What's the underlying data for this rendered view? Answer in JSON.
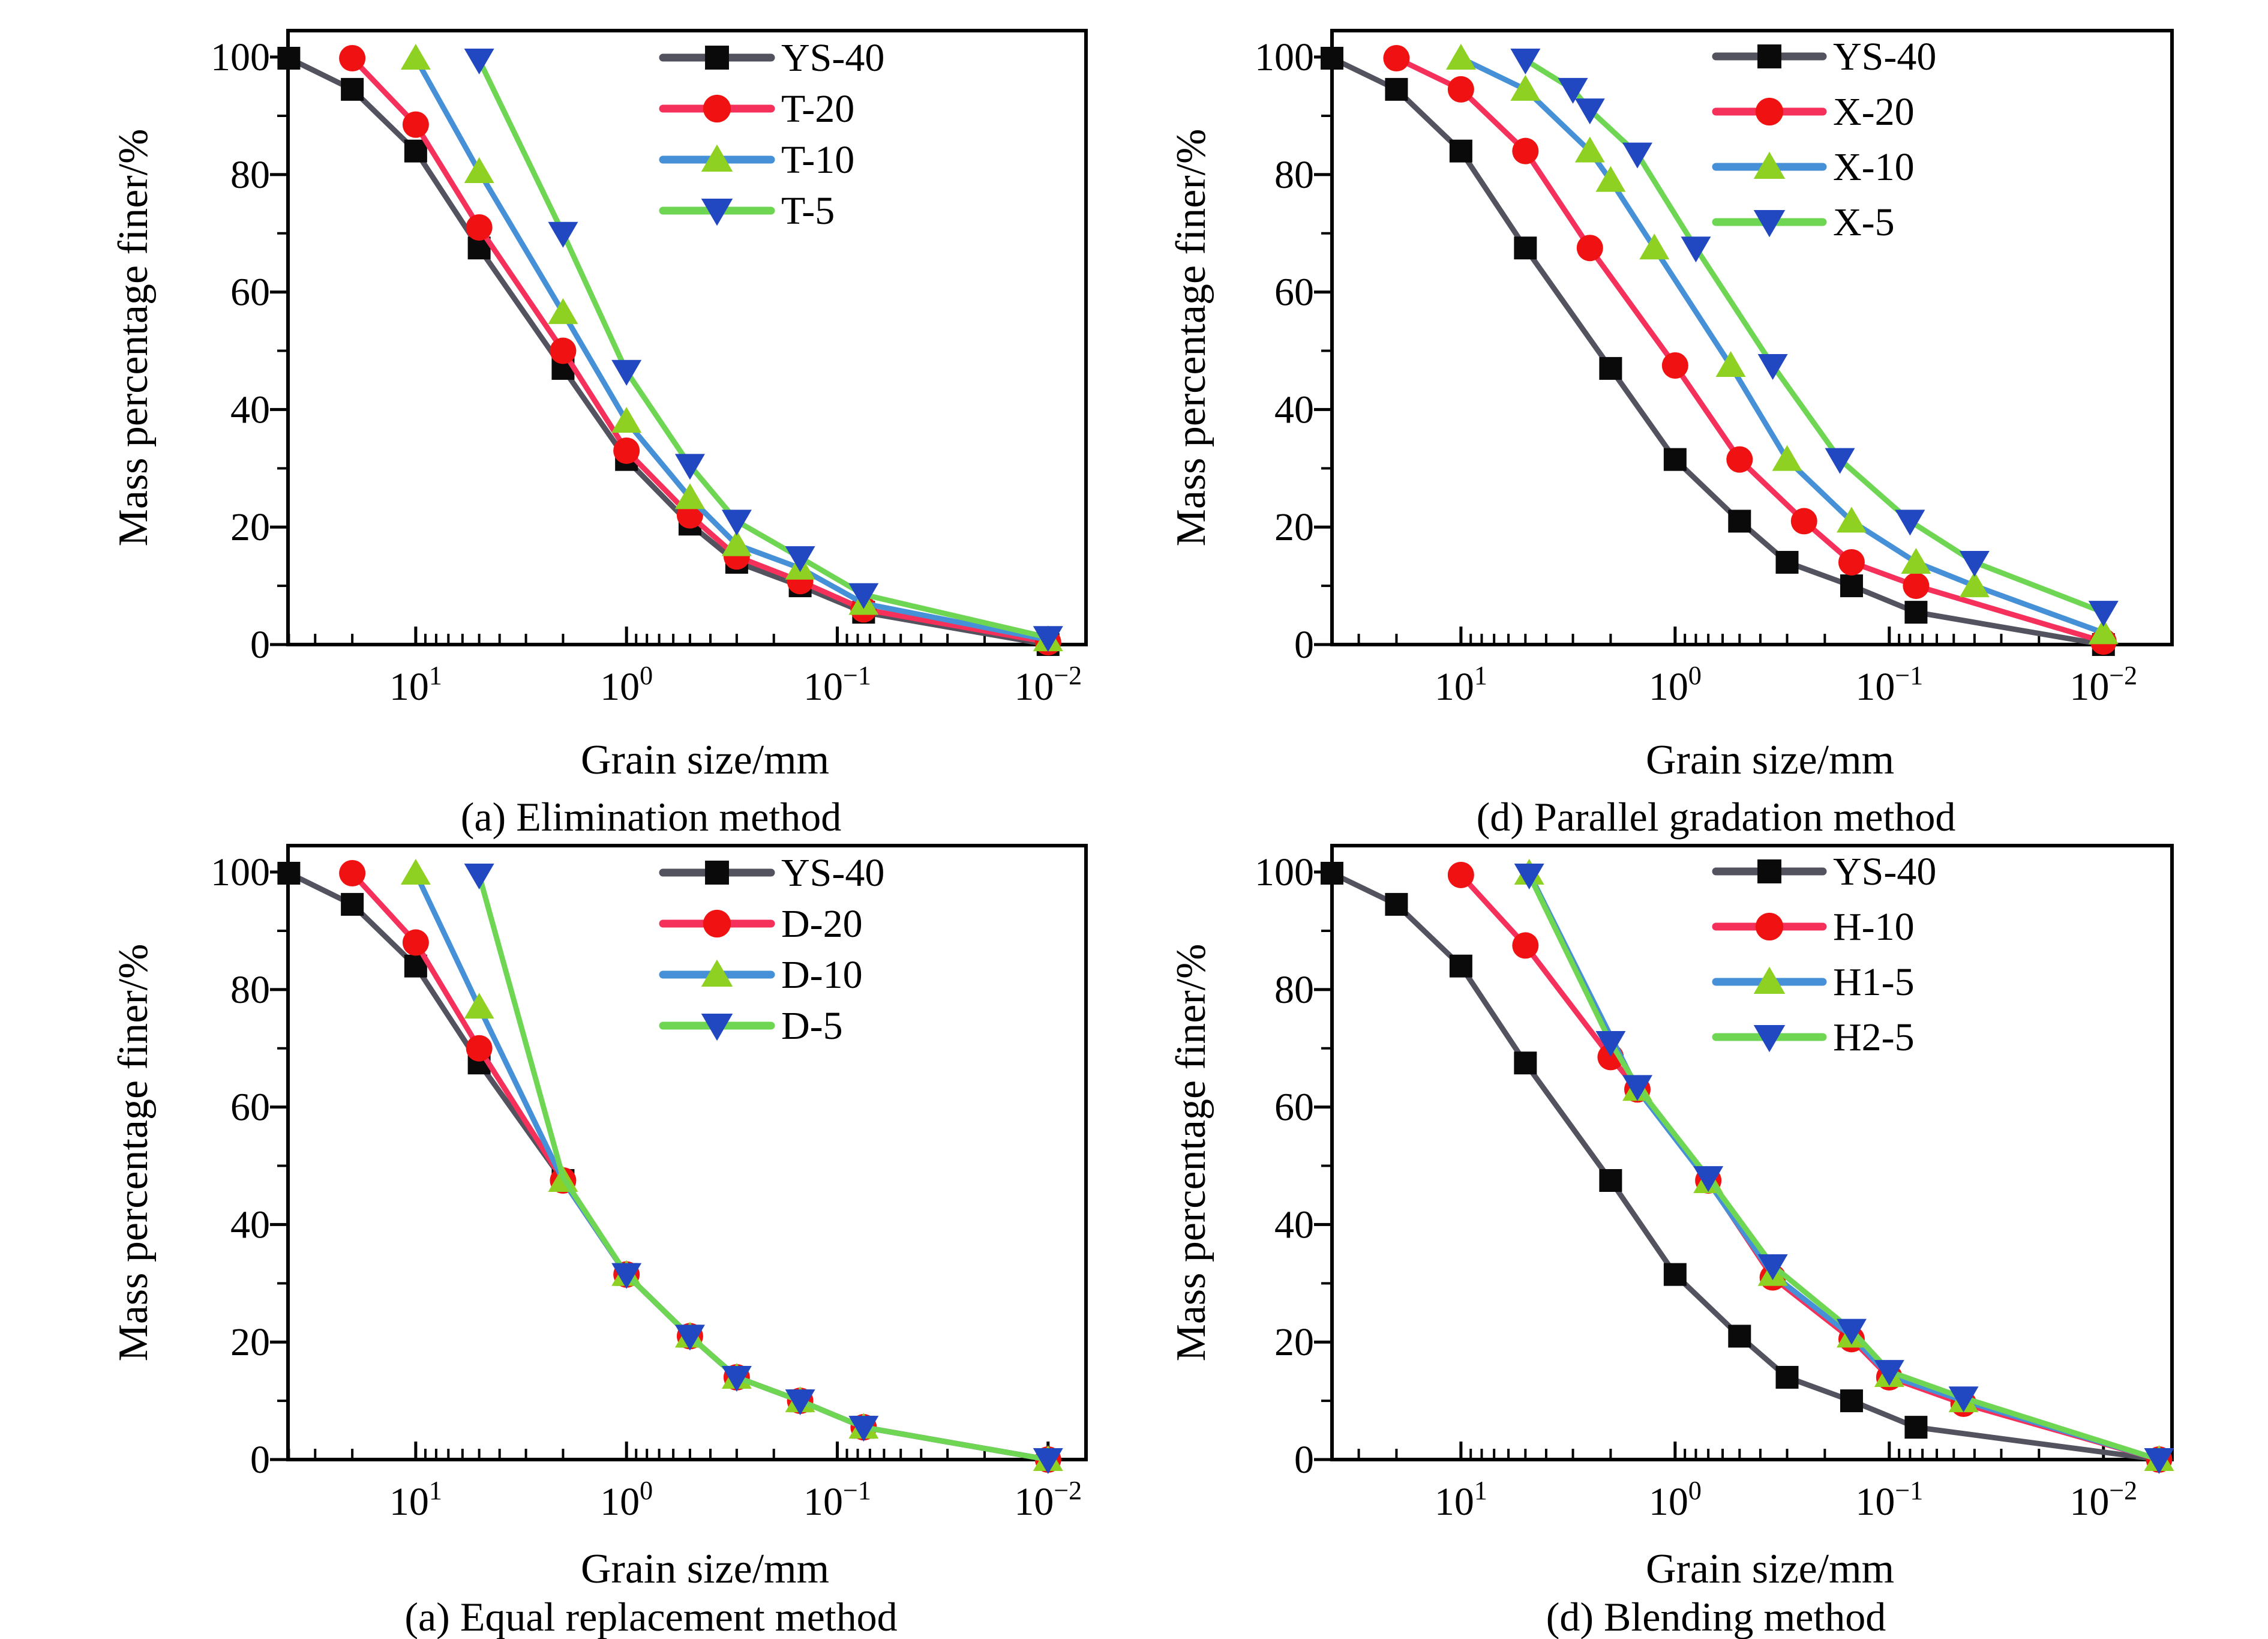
{
  "figure_title": "",
  "accent_colors": {
    "ys40_line": "#53535f",
    "ys40_marker": "#0a0a0a",
    "series2_line": "#f5305a",
    "series2_marker": "#f01212",
    "series3_line": "#4590d6",
    "series3_marker": "#8ed122",
    "series4_line": "#6ed653",
    "series4_marker": "#2148c0",
    "axis": "#000000",
    "text": "#000000",
    "background": "#ffffff"
  },
  "chart_data": [
    {
      "type": "line",
      "caption": "(a) Elimination method",
      "xlabel": "Grain size/mm",
      "ylabel": "Mass percentage finer/%",
      "x_axis": {
        "scale": "log",
        "reversed": true,
        "major_tick_exponents": [
          1,
          0,
          -1,
          -2
        ],
        "unit": "mm"
      },
      "y_axis": {
        "min": 0,
        "max": 100,
        "major_ticks": [
          0,
          20,
          40,
          60,
          80,
          100
        ]
      },
      "grid": false,
      "legend_position": "top-right-inside",
      "series": [
        {
          "name": "YS-40",
          "line_color": "#53535f",
          "marker_color": "#0a0a0a",
          "marker": "square",
          "points": [
            [
              40,
              99.8
            ],
            [
              20,
              94.5
            ],
            [
              10,
              84
            ],
            [
              5,
              67.5
            ],
            [
              2,
              47
            ],
            [
              1,
              31.5
            ],
            [
              0.5,
              20.5
            ],
            [
              0.3,
              14
            ],
            [
              0.15,
              10
            ],
            [
              0.075,
              5.5
            ],
            [
              0.01,
              0
            ]
          ]
        },
        {
          "name": "T-20",
          "line_color": "#f5305a",
          "marker_color": "#f01212",
          "marker": "circle",
          "points": [
            [
              20,
              99.8
            ],
            [
              10,
              88.5
            ],
            [
              5,
              71
            ],
            [
              2,
              50
            ],
            [
              1,
              33
            ],
            [
              0.5,
              22
            ],
            [
              0.3,
              15
            ],
            [
              0.15,
              10.8
            ],
            [
              0.075,
              6
            ],
            [
              0.01,
              0.4
            ]
          ]
        },
        {
          "name": "T-10",
          "line_color": "#4590d6",
          "marker_color": "#8ed122",
          "marker": "triangle-up",
          "points": [
            [
              10,
              99.8
            ],
            [
              5,
              80.5
            ],
            [
              2,
              56.5
            ],
            [
              1,
              38
            ],
            [
              0.5,
              25
            ],
            [
              0.3,
              17
            ],
            [
              0.15,
              13
            ],
            [
              0.075,
              7
            ],
            [
              0.01,
              0.8
            ]
          ]
        },
        {
          "name": "T-5",
          "line_color": "#6ed653",
          "marker_color": "#2148c0",
          "marker": "triangle-down",
          "points": [
            [
              5,
              99.5
            ],
            [
              2,
              70
            ],
            [
              1,
              46.5
            ],
            [
              0.5,
              30.5
            ],
            [
              0.3,
              21
            ],
            [
              0.15,
              14.8
            ],
            [
              0.075,
              8.5
            ],
            [
              0.01,
              1.2
            ]
          ]
        }
      ],
      "layout": {
        "frame_left": 440,
        "frame_right": 1770,
        "frame_top": 35,
        "frame_bottom": 1058,
        "x_left_exp": 1.606,
        "x_right_exp": -2.18,
        "y_top_pct": 104.5,
        "ytick_label_x": 410,
        "ytitle_x": 205,
        "legend": {
          "x1": 1065,
          "x2": 1245,
          "label_x": 1262,
          "rows_y": [
            80,
            165,
            250,
            335
          ]
        },
        "xtick_label_dy": 92,
        "xlabel_dy": 215,
        "caption_dy": 310
      }
    },
    {
      "type": "line",
      "caption": "(d) Parallel gradation method",
      "xlabel": "Grain size/mm",
      "ylabel": "Mass percentage finer/%",
      "x_axis": {
        "scale": "log",
        "reversed": true,
        "major_tick_exponents": [
          1,
          0,
          -1,
          -2
        ],
        "unit": "mm"
      },
      "y_axis": {
        "min": 0,
        "max": 100,
        "major_ticks": [
          0,
          20,
          40,
          60,
          80,
          100
        ]
      },
      "grid": false,
      "legend_position": "top-right-inside",
      "series": [
        {
          "name": "YS-40",
          "line_color": "#53535f",
          "marker_color": "#0a0a0a",
          "marker": "square",
          "points": [
            [
              40,
              99.8
            ],
            [
              20,
              94.5
            ],
            [
              10,
              84
            ],
            [
              5,
              67.5
            ],
            [
              2,
              47
            ],
            [
              1,
              31.5
            ],
            [
              0.5,
              21
            ],
            [
              0.3,
              14
            ],
            [
              0.15,
              10
            ],
            [
              0.075,
              5.5
            ],
            [
              0.01,
              0
            ]
          ]
        },
        {
          "name": "X-20",
          "line_color": "#f5305a",
          "marker_color": "#f01212",
          "marker": "circle",
          "points": [
            [
              20,
              99.8
            ],
            [
              10,
              94.5
            ],
            [
              5,
              84
            ],
            [
              2.5,
              67.5
            ],
            [
              1,
              47.5
            ],
            [
              0.5,
              31.5
            ],
            [
              0.25,
              21
            ],
            [
              0.15,
              14
            ],
            [
              0.075,
              10
            ],
            [
              0.01,
              0.5
            ]
          ]
        },
        {
          "name": "X-10",
          "line_color": "#4590d6",
          "marker_color": "#8ed122",
          "marker": "triangle-up",
          "points": [
            [
              10,
              99.8
            ],
            [
              5,
              94.5
            ],
            [
              2.5,
              84
            ],
            [
              2,
              79
            ],
            [
              1.25,
              67.5
            ],
            [
              0.55,
              47.5
            ],
            [
              0.3,
              31.5
            ],
            [
              0.15,
              21
            ],
            [
              0.075,
              14
            ],
            [
              0.04,
              10
            ],
            [
              0.01,
              2
            ]
          ]
        },
        {
          "name": "X-5",
          "line_color": "#6ed653",
          "marker_color": "#2148c0",
          "marker": "triangle-down",
          "points": [
            [
              5,
              99.5
            ],
            [
              3,
              94.5
            ],
            [
              2.5,
              91
            ],
            [
              1.5,
              83.5
            ],
            [
              0.8,
              67.5
            ],
            [
              0.35,
              47.5
            ],
            [
              0.17,
              31.5
            ],
            [
              0.08,
              21
            ],
            [
              0.04,
              14
            ],
            [
              0.01,
              5.5
            ]
          ]
        }
      ],
      "layout": {
        "frame_left": 290,
        "frame_right": 1690,
        "frame_top": 35,
        "frame_bottom": 1058,
        "x_left_exp": 1.602,
        "x_right_exp": -2.32,
        "y_top_pct": 104.5,
        "ytick_label_x": 260,
        "ytitle_x": 78,
        "legend": {
          "x1": 930,
          "x2": 1108,
          "label_x": 1125,
          "rows_y": [
            78,
            170,
            262,
            354
          ]
        },
        "xtick_label_dy": 92,
        "xlabel_dy": 215,
        "caption_dy": 310
      }
    },
    {
      "type": "line",
      "caption": "(a) Equal replacement method",
      "xlabel": "Grain size/mm",
      "ylabel": "Mass percentage finer/%",
      "x_axis": {
        "scale": "log",
        "reversed": true,
        "major_tick_exponents": [
          1,
          0,
          -1,
          -2
        ],
        "unit": "mm"
      },
      "y_axis": {
        "min": 0,
        "max": 100,
        "major_ticks": [
          0,
          20,
          40,
          60,
          80,
          100
        ]
      },
      "grid": false,
      "legend_position": "top-right-inside",
      "series": [
        {
          "name": "YS-40",
          "line_color": "#53535f",
          "marker_color": "#0a0a0a",
          "marker": "square",
          "points": [
            [
              40,
              99.8
            ],
            [
              20,
              94.5
            ],
            [
              10,
              84
            ],
            [
              5,
              67.5
            ],
            [
              2,
              47.5
            ],
            [
              1,
              31.5
            ],
            [
              0.5,
              21
            ],
            [
              0.3,
              14
            ],
            [
              0.15,
              10
            ],
            [
              0.075,
              5.5
            ],
            [
              0.01,
              0
            ]
          ]
        },
        {
          "name": "D-20",
          "line_color": "#f5305a",
          "marker_color": "#f01212",
          "marker": "circle",
          "points": [
            [
              20,
              99.8
            ],
            [
              10,
              88
            ],
            [
              5,
              70
            ],
            [
              2,
              47.5
            ],
            [
              1,
              31.5
            ],
            [
              0.5,
              21
            ],
            [
              0.3,
              14
            ],
            [
              0.15,
              10
            ],
            [
              0.075,
              5.5
            ],
            [
              0.01,
              0
            ]
          ]
        },
        {
          "name": "D-10",
          "line_color": "#4590d6",
          "marker_color": "#8ed122",
          "marker": "triangle-up",
          "points": [
            [
              10,
              99.8
            ],
            [
              5,
              77
            ],
            [
              2,
              47.5
            ],
            [
              1,
              31.5
            ],
            [
              0.5,
              21
            ],
            [
              0.3,
              14
            ],
            [
              0.15,
              10
            ],
            [
              0.075,
              5.5
            ],
            [
              0.01,
              0
            ]
          ]
        },
        {
          "name": "D-5",
          "line_color": "#6ed653",
          "marker_color": "#2148c0",
          "marker": "triangle-down",
          "points": [
            [
              5,
              99.5
            ],
            [
              2,
              48,
              0
            ],
            [
              1,
              31.5
            ],
            [
              0.5,
              21
            ],
            [
              0.3,
              14
            ],
            [
              0.15,
              10
            ],
            [
              0.075,
              5.5
            ],
            [
              0.01,
              0
            ]
          ]
        }
      ],
      "layout": {
        "frame_left": 440,
        "frame_right": 1770,
        "frame_top": 35,
        "frame_bottom": 1058,
        "x_left_exp": 1.606,
        "x_right_exp": -2.18,
        "y_top_pct": 104.5,
        "ytick_label_x": 410,
        "ytitle_x": 205,
        "legend": {
          "x1": 1065,
          "x2": 1245,
          "label_x": 1262,
          "rows_y": [
            80,
            165,
            250,
            335
          ]
        },
        "xtick_label_dy": 92,
        "xlabel_dy": 205,
        "caption_dy": 285
      }
    },
    {
      "type": "line",
      "caption": "(d) Blending method",
      "xlabel": "Grain size/mm",
      "ylabel": "Mass percentage finer/%",
      "x_axis": {
        "scale": "log",
        "reversed": true,
        "major_tick_exponents": [
          1,
          0,
          -1,
          -2
        ],
        "unit": "mm"
      },
      "y_axis": {
        "min": 0,
        "max": 100,
        "major_ticks": [
          0,
          20,
          40,
          60,
          80,
          100
        ]
      },
      "grid": false,
      "legend_position": "top-right-inside",
      "series": [
        {
          "name": "YS-40",
          "line_color": "#53535f",
          "marker_color": "#0a0a0a",
          "marker": "square",
          "points": [
            [
              40,
              99.8
            ],
            [
              20,
              94.5
            ],
            [
              10,
              84
            ],
            [
              5,
              67.5
            ],
            [
              2,
              47.5
            ],
            [
              1,
              31.5
            ],
            [
              0.5,
              21
            ],
            [
              0.3,
              14
            ],
            [
              0.15,
              10
            ],
            [
              0.075,
              5.5
            ],
            [
              0.0055,
              0
            ]
          ]
        },
        {
          "name": "H-10",
          "line_color": "#f5305a",
          "marker_color": "#f01212",
          "marker": "circle",
          "points": [
            [
              10,
              99.5
            ],
            [
              5,
              87.5
            ],
            [
              2,
              68.5
            ],
            [
              1.5,
              63
            ],
            [
              0.7,
              47.5
            ],
            [
              0.35,
              31
            ],
            [
              0.15,
              20.5
            ],
            [
              0.1,
              14
            ],
            [
              0.045,
              9.5
            ],
            [
              0.0055,
              0
            ]
          ]
        },
        {
          "name": "H1-5",
          "line_color": "#4590d6",
          "marker_color": "#8ed122",
          "marker": "triangle-up",
          "points": [
            [
              4.8,
              99.8
            ],
            [
              1.5,
              63
            ],
            [
              0.7,
              47.3
            ],
            [
              0.35,
              31.5
            ],
            [
              0.15,
              21
            ],
            [
              0.1,
              14.3
            ],
            [
              0.045,
              10
            ],
            [
              0.0055,
              0
            ]
          ]
        },
        {
          "name": "H2-5",
          "line_color": "#6ed653",
          "marker_color": "#2148c0",
          "marker": "triangle-down",
          "points": [
            [
              4.8,
              99.5
            ],
            [
              2,
              71
            ],
            [
              1.5,
              63.5
            ],
            [
              0.7,
              48
            ],
            [
              0.35,
              33
            ],
            [
              0.15,
              22
            ],
            [
              0.1,
              15
            ],
            [
              0.045,
              10.5
            ],
            [
              0.0055,
              0
            ]
          ]
        }
      ],
      "layout": {
        "frame_left": 290,
        "frame_right": 1690,
        "frame_top": 35,
        "frame_bottom": 1058,
        "x_left_exp": 1.602,
        "x_right_exp": -2.32,
        "y_top_pct": 104.5,
        "ytick_label_x": 260,
        "ytitle_x": 78,
        "legend": {
          "x1": 930,
          "x2": 1108,
          "label_x": 1125,
          "rows_y": [
            78,
            170,
            262,
            354
          ]
        },
        "xtick_label_dy": 92,
        "xlabel_dy": 205,
        "caption_dy": 285
      }
    }
  ]
}
